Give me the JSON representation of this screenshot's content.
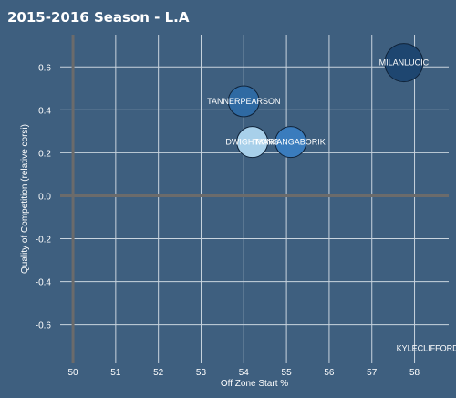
{
  "title": "2015-2016 Season - L.A",
  "chart_data": {
    "type": "scatter",
    "title": "2015-2016 Season - L.A",
    "xlabel": "Off Zone Start %",
    "ylabel": "Quality of Competition (relative corsi)",
    "xlim": [
      49.7,
      58.8
    ],
    "ylim": [
      -0.78,
      0.75
    ],
    "x_ticks": [
      50,
      51,
      52,
      53,
      54,
      55,
      56,
      57,
      58
    ],
    "y_ticks": [
      -0.6,
      -0.4,
      -0.2,
      0.0,
      0.2,
      0.4,
      0.6
    ],
    "x_tick_labels": [
      "50",
      "51",
      "52",
      "53",
      "54",
      "55",
      "56",
      "57",
      "58"
    ],
    "y_tick_labels": [
      "-0.6",
      "-0.4",
      "-0.2",
      "0.0",
      "0.2",
      "0.4",
      "0.6"
    ],
    "grid": true,
    "points": [
      {
        "label": "MILANLUCIC",
        "x": 57.75,
        "y": 0.62,
        "size": 3,
        "color": "#1e4670"
      },
      {
        "label": "TANNERPEARSON",
        "x": 54.0,
        "y": 0.44,
        "size": 2,
        "color": "#2f6aa3"
      },
      {
        "label": "DWIGHTKING",
        "x": 54.2,
        "y": 0.25,
        "size": 2,
        "color": "#a8d0ea"
      },
      {
        "label": "MARIANGABORIK",
        "x": 55.1,
        "y": 0.25,
        "size": 2,
        "color": "#3a7cbd"
      },
      {
        "label": "KYLECLIFFORD",
        "x": 58.3,
        "y": -0.71,
        "size": 0,
        "color": "#3e5f7f"
      }
    ]
  },
  "colors": {
    "background": "#3e5f7f",
    "grid": "#c9d4de",
    "zero_line": "#6b6b6b",
    "text": "#ffffff"
  }
}
